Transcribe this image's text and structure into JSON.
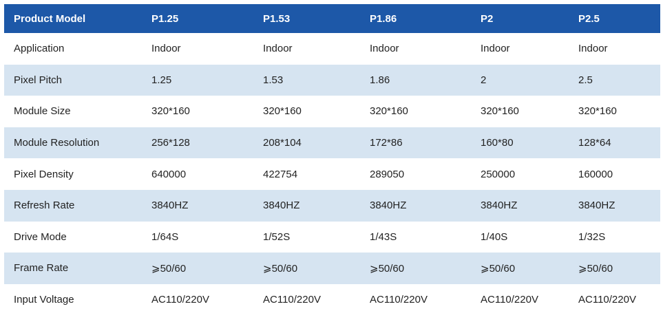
{
  "table": {
    "headers": [
      "Product Model",
      "P1.25",
      "P1.53",
      "P1.86",
      "P2",
      "P2.5"
    ],
    "rows": [
      [
        "Application",
        "Indoor",
        "Indoor",
        "Indoor",
        "Indoor",
        "Indoor"
      ],
      [
        "Pixel Pitch",
        "1.25",
        "1.53",
        "1.86",
        "2",
        "2.5"
      ],
      [
        "Module Size",
        "320*160",
        "320*160",
        "320*160",
        "320*160",
        "320*160"
      ],
      [
        "Module Resolution",
        "256*128",
        "208*104",
        "172*86",
        "160*80",
        "128*64"
      ],
      [
        "Pixel Density",
        "640000",
        "422754",
        "289050",
        "250000",
        "160000"
      ],
      [
        "Refresh Rate",
        "3840HZ",
        "3840HZ",
        "3840HZ",
        "3840HZ",
        "3840HZ"
      ],
      [
        "Drive Mode",
        "1/64S",
        "1/52S",
        "1/43S",
        "1/40S",
        "1/32S"
      ],
      [
        "Frame Rate",
        "⩾50/60",
        "⩾50/60",
        "⩾50/60",
        "⩾50/60",
        "⩾50/60"
      ],
      [
        "Input Voltage",
        "AC110/220V",
        "AC110/220V",
        "AC110/220V",
        "AC110/220V",
        "AC110/220V"
      ]
    ]
  },
  "colors": {
    "header_bg": "#1d58a8",
    "header_text": "#ffffff",
    "stripe_bg": "#d6e4f1",
    "body_text": "#222222"
  }
}
